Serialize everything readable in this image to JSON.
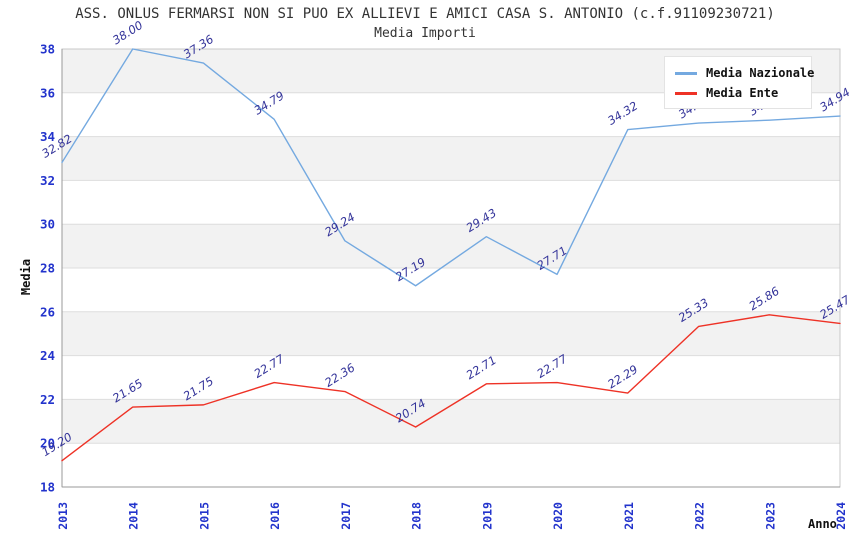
{
  "chart_data": {
    "type": "line",
    "title": "ASS. ONLUS FERMARSI NON SI PUO EX ALLIEVI E AMICI CASA S. ANTONIO (c.f.91109230721)",
    "subtitle": "Media Importi",
    "xlabel": "Anno",
    "ylabel": "Media",
    "x": [
      "2013",
      "2014",
      "2015",
      "2016",
      "2017",
      "2018",
      "2019",
      "2020",
      "2021",
      "2022",
      "2023",
      "2024"
    ],
    "ylim": [
      18,
      38
    ],
    "ytick_step": 2,
    "grid": "horizontal-bands",
    "legend_position": "top-right",
    "series": [
      {
        "name": "Media Nazionale",
        "color": "#74a9e0",
        "values": [
          32.82,
          38.0,
          37.36,
          34.79,
          29.24,
          27.19,
          29.43,
          27.71,
          34.32,
          34.62,
          34.75,
          34.94
        ]
      },
      {
        "name": "Media Ente",
        "color": "#ee3226",
        "values": [
          19.2,
          21.65,
          21.75,
          22.77,
          22.36,
          20.74,
          22.71,
          22.77,
          22.29,
          25.33,
          25.86,
          25.47
        ]
      }
    ],
    "colors": {
      "band_gray": "#f2f2f2",
      "gridline": "#dddddd",
      "plot_border": "#c8c8c8",
      "axis_line": "#999999",
      "tick_label": "#2233cc",
      "data_label": "#333399",
      "title_text": "#333333"
    }
  }
}
